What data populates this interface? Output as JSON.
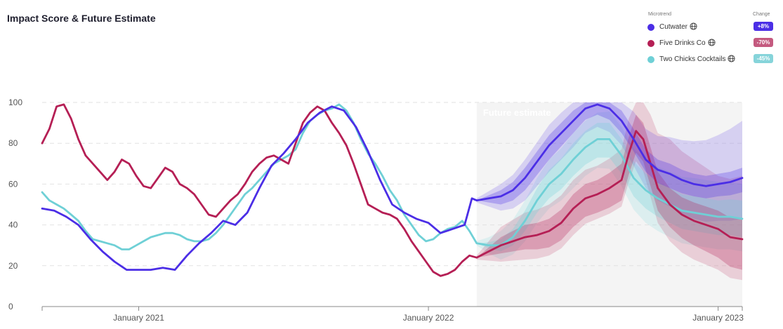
{
  "title": "Impact Score & Future Estimate",
  "legend": {
    "header_name": "Microtrend",
    "header_change": "Change",
    "items": [
      {
        "name": "Cutwater",
        "change": "+8%",
        "color": "#4b2ee6",
        "badge_color": "#4b2ee6",
        "icon": "globe-icon"
      },
      {
        "name": "Five Drinks Co",
        "change": "-70%",
        "color": "#b51f55",
        "badge_color": "#c45a7f",
        "icon": "globe-icon"
      },
      {
        "name": "Two Chicks Cocktails",
        "change": "-45%",
        "color": "#6fd0d6",
        "badge_color": "#86d4da",
        "icon": "globe-icon"
      }
    ]
  },
  "chart_data": {
    "type": "line",
    "title": "Impact Score & Future Estimate",
    "ylim": [
      0,
      100
    ],
    "yticks": [
      0,
      20,
      40,
      60,
      80,
      100
    ],
    "xlim": [
      "2020-09",
      "2023-02"
    ],
    "xticks": [
      {
        "label": "January 2021",
        "t": 4
      },
      {
        "label": "January 2022",
        "t": 16
      },
      {
        "label": "January 2023",
        "t": 28
      }
    ],
    "future_start": 18,
    "future_label": "Future estimate",
    "x_unit": "months since Sept 2020",
    "series": [
      {
        "name": "Cutwater",
        "color": "#4b2ee6",
        "points": [
          [
            0,
            48
          ],
          [
            0.5,
            47
          ],
          [
            1,
            44
          ],
          [
            1.5,
            40
          ],
          [
            2,
            33
          ],
          [
            2.5,
            27
          ],
          [
            3,
            22
          ],
          [
            3.5,
            18
          ],
          [
            4,
            18
          ],
          [
            4.5,
            18
          ],
          [
            5,
            19
          ],
          [
            5.5,
            18
          ],
          [
            6,
            25
          ],
          [
            6.5,
            31
          ],
          [
            7,
            36
          ],
          [
            7.5,
            42
          ],
          [
            8,
            40
          ],
          [
            8.5,
            46
          ],
          [
            9,
            58
          ],
          [
            9.5,
            69
          ],
          [
            10,
            75
          ],
          [
            10.5,
            82
          ],
          [
            11,
            90
          ],
          [
            11.5,
            95
          ],
          [
            12,
            98
          ],
          [
            12.5,
            96
          ],
          [
            13,
            88
          ],
          [
            13.5,
            76
          ],
          [
            14,
            62
          ],
          [
            14.5,
            50
          ],
          [
            15,
            46
          ],
          [
            15.5,
            43
          ],
          [
            16,
            41
          ],
          [
            16.5,
            36
          ],
          [
            17,
            38
          ],
          [
            17.5,
            40
          ],
          [
            17.8,
            53
          ],
          [
            18,
            52
          ],
          [
            18.5,
            53
          ],
          [
            19,
            54
          ],
          [
            19.5,
            57
          ],
          [
            20,
            63
          ],
          [
            20.5,
            71
          ],
          [
            21,
            79
          ],
          [
            21.5,
            85
          ],
          [
            22,
            91
          ],
          [
            22.5,
            97
          ],
          [
            23,
            99
          ],
          [
            23.5,
            97
          ],
          [
            24,
            91
          ],
          [
            24.5,
            82
          ],
          [
            25,
            72
          ],
          [
            25.5,
            67
          ],
          [
            26,
            65
          ],
          [
            26.5,
            62
          ],
          [
            27,
            60
          ],
          [
            27.5,
            59
          ],
          [
            28,
            60
          ],
          [
            28.5,
            61
          ],
          [
            29,
            63
          ]
        ],
        "band_inner": [
          [
            18,
            0,
            0
          ],
          [
            19,
            3,
            4
          ],
          [
            20,
            5,
            6
          ],
          [
            21,
            5,
            7
          ],
          [
            22,
            5,
            6
          ],
          [
            23,
            4,
            5
          ],
          [
            24,
            5,
            6
          ],
          [
            25,
            5,
            6
          ],
          [
            26,
            5,
            7
          ],
          [
            27,
            5,
            6
          ],
          [
            28,
            5,
            6
          ],
          [
            29,
            5,
            7
          ]
        ],
        "band_outer": [
          [
            18,
            1,
            1
          ],
          [
            19,
            6,
            7
          ],
          [
            20,
            9,
            11
          ],
          [
            21,
            10,
            13
          ],
          [
            22,
            10,
            13
          ],
          [
            23,
            9,
            11
          ],
          [
            24,
            12,
            12
          ],
          [
            25,
            15,
            14
          ],
          [
            26,
            18,
            16
          ],
          [
            27,
            21,
            17
          ],
          [
            28,
            24,
            18
          ],
          [
            29,
            28,
            20
          ]
        ]
      },
      {
        "name": "Five Drinks Co",
        "color": "#b51f55",
        "points": [
          [
            0,
            80
          ],
          [
            0.3,
            87
          ],
          [
            0.6,
            98
          ],
          [
            0.9,
            99
          ],
          [
            1.2,
            92
          ],
          [
            1.5,
            82
          ],
          [
            1.8,
            74
          ],
          [
            2.1,
            70
          ],
          [
            2.4,
            66
          ],
          [
            2.7,
            62
          ],
          [
            3,
            66
          ],
          [
            3.3,
            72
          ],
          [
            3.6,
            70
          ],
          [
            3.9,
            64
          ],
          [
            4.2,
            59
          ],
          [
            4.5,
            58
          ],
          [
            4.8,
            63
          ],
          [
            5.1,
            68
          ],
          [
            5.4,
            66
          ],
          [
            5.7,
            60
          ],
          [
            6,
            58
          ],
          [
            6.3,
            55
          ],
          [
            6.6,
            50
          ],
          [
            6.9,
            45
          ],
          [
            7.2,
            44
          ],
          [
            7.5,
            48
          ],
          [
            7.8,
            52
          ],
          [
            8.1,
            55
          ],
          [
            8.4,
            60
          ],
          [
            8.7,
            66
          ],
          [
            9,
            70
          ],
          [
            9.3,
            73
          ],
          [
            9.6,
            74
          ],
          [
            9.9,
            72
          ],
          [
            10.2,
            70
          ],
          [
            10.5,
            80
          ],
          [
            10.8,
            90
          ],
          [
            11.1,
            95
          ],
          [
            11.4,
            98
          ],
          [
            11.7,
            96
          ],
          [
            12,
            90
          ],
          [
            12.3,
            85
          ],
          [
            12.6,
            79
          ],
          [
            12.9,
            70
          ],
          [
            13.2,
            60
          ],
          [
            13.5,
            50
          ],
          [
            13.8,
            48
          ],
          [
            14.1,
            46
          ],
          [
            14.4,
            45
          ],
          [
            14.7,
            43
          ],
          [
            15,
            38
          ],
          [
            15.3,
            32
          ],
          [
            15.6,
            27
          ],
          [
            15.9,
            22
          ],
          [
            16.2,
            17
          ],
          [
            16.5,
            15
          ],
          [
            16.8,
            16
          ],
          [
            17.1,
            18
          ],
          [
            17.4,
            22
          ],
          [
            17.7,
            25
          ],
          [
            18,
            24
          ],
          [
            18.5,
            27
          ],
          [
            19,
            30
          ],
          [
            19.5,
            32
          ],
          [
            20,
            34
          ],
          [
            20.5,
            35
          ],
          [
            21,
            37
          ],
          [
            21.5,
            41
          ],
          [
            22,
            48
          ],
          [
            22.5,
            53
          ],
          [
            23,
            55
          ],
          [
            23.5,
            58
          ],
          [
            24,
            62
          ],
          [
            24.3,
            75
          ],
          [
            24.6,
            86
          ],
          [
            24.9,
            82
          ],
          [
            25.2,
            70
          ],
          [
            25.5,
            58
          ],
          [
            26,
            50
          ],
          [
            26.5,
            45
          ],
          [
            27,
            42
          ],
          [
            27.5,
            40
          ],
          [
            28,
            38
          ],
          [
            28.5,
            34
          ],
          [
            29,
            33
          ]
        ],
        "band_inner": [
          [
            18,
            0,
            0
          ],
          [
            19,
            4,
            4
          ],
          [
            20,
            6,
            6
          ],
          [
            21,
            6,
            8
          ],
          [
            22,
            7,
            9
          ],
          [
            23,
            7,
            9
          ],
          [
            24,
            8,
            10
          ],
          [
            25,
            8,
            11
          ],
          [
            26,
            8,
            11
          ],
          [
            27,
            9,
            12
          ],
          [
            28,
            9,
            14
          ],
          [
            29,
            10,
            15
          ]
        ],
        "band_outer": [
          [
            18,
            1,
            1
          ],
          [
            19,
            9,
            8
          ],
          [
            20,
            12,
            11
          ],
          [
            21,
            13,
            12
          ],
          [
            22,
            14,
            13
          ],
          [
            23,
            14,
            12
          ],
          [
            24,
            15,
            13
          ],
          [
            25,
            22,
            16
          ],
          [
            26,
            32,
            18
          ],
          [
            27,
            30,
            19
          ],
          [
            28,
            26,
            20
          ],
          [
            29,
            31,
            20
          ]
        ]
      },
      {
        "name": "Two Chicks Cocktails",
        "color": "#6fd0d6",
        "points": [
          [
            0,
            56
          ],
          [
            0.3,
            52
          ],
          [
            0.6,
            50
          ],
          [
            0.9,
            48
          ],
          [
            1.2,
            45
          ],
          [
            1.5,
            42
          ],
          [
            1.8,
            37
          ],
          [
            2.1,
            33
          ],
          [
            2.4,
            32
          ],
          [
            2.7,
            31
          ],
          [
            3,
            30
          ],
          [
            3.3,
            28
          ],
          [
            3.6,
            28
          ],
          [
            3.9,
            30
          ],
          [
            4.2,
            32
          ],
          [
            4.5,
            34
          ],
          [
            4.8,
            35
          ],
          [
            5.1,
            36
          ],
          [
            5.4,
            36
          ],
          [
            5.7,
            35
          ],
          [
            6,
            33
          ],
          [
            6.3,
            32
          ],
          [
            6.6,
            32
          ],
          [
            6.9,
            33
          ],
          [
            7.2,
            36
          ],
          [
            7.5,
            40
          ],
          [
            7.8,
            45
          ],
          [
            8.1,
            50
          ],
          [
            8.4,
            55
          ],
          [
            8.7,
            58
          ],
          [
            9,
            62
          ],
          [
            9.3,
            66
          ],
          [
            9.6,
            70
          ],
          [
            9.9,
            72
          ],
          [
            10.2,
            74
          ],
          [
            10.5,
            77
          ],
          [
            10.8,
            85
          ],
          [
            11.1,
            91
          ],
          [
            11.4,
            94
          ],
          [
            11.7,
            96
          ],
          [
            12,
            97
          ],
          [
            12.3,
            99
          ],
          [
            12.6,
            96
          ],
          [
            12.9,
            90
          ],
          [
            13.2,
            82
          ],
          [
            13.5,
            75
          ],
          [
            13.8,
            70
          ],
          [
            14.1,
            64
          ],
          [
            14.4,
            57
          ],
          [
            14.7,
            52
          ],
          [
            15,
            45
          ],
          [
            15.3,
            40
          ],
          [
            15.6,
            35
          ],
          [
            15.9,
            32
          ],
          [
            16.2,
            33
          ],
          [
            16.5,
            36
          ],
          [
            16.8,
            38
          ],
          [
            17.1,
            39
          ],
          [
            17.4,
            42
          ],
          [
            17.7,
            37
          ],
          [
            18,
            31
          ],
          [
            18.5,
            30
          ],
          [
            19,
            30
          ],
          [
            19.5,
            34
          ],
          [
            20,
            42
          ],
          [
            20.5,
            52
          ],
          [
            21,
            60
          ],
          [
            21.5,
            65
          ],
          [
            22,
            72
          ],
          [
            22.5,
            78
          ],
          [
            23,
            82
          ],
          [
            23.5,
            82
          ],
          [
            24,
            74
          ],
          [
            24.5,
            63
          ],
          [
            25,
            57
          ],
          [
            25.5,
            53
          ],
          [
            26,
            50
          ],
          [
            26.5,
            47
          ],
          [
            27,
            46
          ],
          [
            27.5,
            45
          ],
          [
            28,
            44
          ],
          [
            28.5,
            44
          ],
          [
            29,
            43
          ]
        ],
        "band_inner": [
          [
            18,
            0,
            0
          ],
          [
            19,
            3,
            3
          ],
          [
            20,
            5,
            5
          ],
          [
            21,
            7,
            7
          ],
          [
            22,
            8,
            8
          ],
          [
            23,
            8,
            9
          ],
          [
            24,
            8,
            9
          ],
          [
            25,
            8,
            9
          ],
          [
            26,
            8,
            9
          ],
          [
            27,
            8,
            9
          ],
          [
            28,
            8,
            9
          ],
          [
            29,
            9,
            9
          ]
        ],
        "band_outer": [
          [
            18,
            1,
            1
          ],
          [
            19,
            7,
            7
          ],
          [
            20,
            10,
            10
          ],
          [
            21,
            12,
            12
          ],
          [
            22,
            13,
            14
          ],
          [
            23,
            13,
            14
          ],
          [
            24,
            14,
            15
          ],
          [
            25,
            15,
            16
          ],
          [
            26,
            16,
            16
          ],
          [
            27,
            17,
            16
          ],
          [
            28,
            17,
            16
          ],
          [
            29,
            17,
            16
          ]
        ]
      }
    ]
  }
}
